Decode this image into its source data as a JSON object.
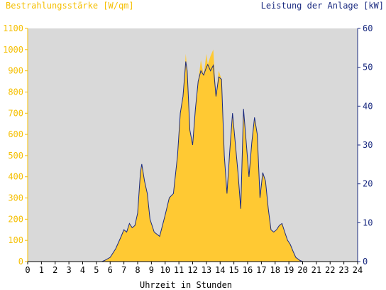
{
  "chart_data": {
    "type": "area",
    "title_left": "Bestrahlungsstärke [W/qm]",
    "title_right": "Leistung der Anlage [kW]",
    "xlabel": "Uhrzeit in Stunden",
    "xlim": [
      0,
      24
    ],
    "x_ticks": [
      "0",
      "1",
      "2",
      "3",
      "4",
      "5",
      "6",
      "7",
      "8",
      "9",
      "10",
      "11",
      "12",
      "13",
      "14",
      "15",
      "16",
      "17",
      "18",
      "19",
      "20",
      "21",
      "22",
      "23",
      "24"
    ],
    "y_left": {
      "lim": [
        0,
        1100
      ],
      "ticks": [
        "0",
        "100",
        "200",
        "300",
        "400",
        "500",
        "600",
        "700",
        "800",
        "900",
        "1000",
        "1100"
      ],
      "color": "#f5bf00"
    },
    "y_right": {
      "lim": [
        0,
        60
      ],
      "ticks": [
        "0",
        "10",
        "20",
        "30",
        "40",
        "50",
        "60"
      ],
      "color": "#1a2a80"
    },
    "grid": false,
    "background": "#d9d9d9",
    "series": [
      {
        "axis": "left",
        "color": "#ffc933",
        "x": [
          0,
          5.4,
          5.6,
          6.0,
          6.4,
          6.8,
          7.0,
          7.2,
          7.4,
          7.6,
          7.8,
          8.0,
          8.2,
          8.3,
          8.5,
          8.7,
          8.9,
          9.2,
          9.6,
          10.0,
          10.3,
          10.6,
          10.9,
          11.1,
          11.3,
          11.5,
          11.6,
          11.8,
          12.0,
          12.2,
          12.4,
          12.6,
          12.8,
          13.0,
          13.1,
          13.3,
          13.5,
          13.7,
          13.9,
          14.1,
          14.3,
          14.5,
          14.7,
          14.9,
          15.1,
          15.3,
          15.5,
          15.7,
          15.9,
          16.1,
          16.3,
          16.5,
          16.7,
          16.9,
          17.1,
          17.3,
          17.5,
          17.7,
          17.9,
          18.1,
          18.3,
          18.5,
          18.7,
          18.9,
          19.1,
          19.3,
          19.5,
          19.8,
          20.0,
          24
        ],
        "y": [
          0,
          0,
          5,
          20,
          60,
          120,
          150,
          140,
          180,
          160,
          170,
          230,
          420,
          460,
          380,
          320,
          200,
          140,
          120,
          220,
          300,
          320,
          500,
          700,
          780,
          980,
          900,
          620,
          550,
          720,
          850,
          950,
          880,
          980,
          930,
          970,
          1000,
          780,
          900,
          860,
          500,
          320,
          520,
          700,
          560,
          420,
          250,
          720,
          560,
          400,
          560,
          680,
          600,
          300,
          420,
          380,
          250,
          150,
          140,
          150,
          170,
          180,
          140,
          100,
          80,
          50,
          20,
          5,
          0,
          0
        ]
      },
      {
        "axis": "right",
        "color": "#1a2a80",
        "x": [
          0,
          5.4,
          5.6,
          6.0,
          6.4,
          6.8,
          7.0,
          7.2,
          7.4,
          7.6,
          7.8,
          8.0,
          8.2,
          8.3,
          8.5,
          8.7,
          8.9,
          9.2,
          9.6,
          10.0,
          10.3,
          10.6,
          10.9,
          11.1,
          11.3,
          11.5,
          11.6,
          11.8,
          12.0,
          12.2,
          12.4,
          12.6,
          12.8,
          13.0,
          13.1,
          13.3,
          13.5,
          13.7,
          13.9,
          14.1,
          14.3,
          14.5,
          14.7,
          14.9,
          15.1,
          15.3,
          15.5,
          15.7,
          15.9,
          16.1,
          16.3,
          16.5,
          16.7,
          16.9,
          17.1,
          17.3,
          17.5,
          17.7,
          17.9,
          18.1,
          18.3,
          18.5,
          18.7,
          18.9,
          19.1,
          19.3,
          19.5,
          19.8,
          20.0,
          24
        ],
        "y": [
          0,
          0,
          0.3,
          1.1,
          3.3,
          6.5,
          8.2,
          7.6,
          9.8,
          8.7,
          9.3,
          12.5,
          22.9,
          25.1,
          20.7,
          17.5,
          10.9,
          7.6,
          6.5,
          12.0,
          16.4,
          17.5,
          27.3,
          38.2,
          42.5,
          51.5,
          49.1,
          33.8,
          30.0,
          39.3,
          46.4,
          49.1,
          48.0,
          50.0,
          50.7,
          49.1,
          50.5,
          42.5,
          47.5,
          46.9,
          27.3,
          17.5,
          28.4,
          38.2,
          30.5,
          22.9,
          13.6,
          39.3,
          30.5,
          21.8,
          30.5,
          37.1,
          32.7,
          16.4,
          22.9,
          20.7,
          13.6,
          8.2,
          7.6,
          8.2,
          9.3,
          9.8,
          7.6,
          5.5,
          4.4,
          2.7,
          1.1,
          0.3,
          0,
          0
        ]
      }
    ]
  }
}
